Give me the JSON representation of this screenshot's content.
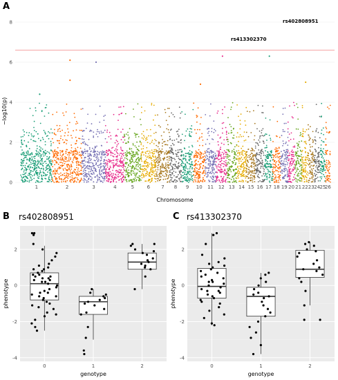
{
  "figure": {
    "panel_letters": [
      "A",
      "B",
      "C"
    ]
  },
  "chart_data": [
    {
      "type": "scatter",
      "subtype": "manhattan",
      "panel": "A",
      "xlabel": "Chromosome",
      "ylabel": "−log10(p)",
      "ylim": [
        0,
        8
      ],
      "yticks": [
        0,
        2,
        4,
        6,
        8
      ],
      "chromosomes": [
        "1",
        "2",
        "3",
        "4",
        "5",
        "6",
        "7",
        "8",
        "9",
        "10",
        "11",
        "12",
        "13",
        "14",
        "15",
        "16",
        "17",
        "18",
        "19",
        "20",
        "21",
        "22",
        "23",
        "24",
        "25",
        "26"
      ],
      "chromosome_colors": [
        "#1b9e77",
        "#ff6a00",
        "#7570b3",
        "#e7298a",
        "#66a61e",
        "#e6ab02",
        "#a6761d",
        "#666666",
        "#1b9e77",
        "#ff6a00",
        "#7570b3",
        "#e7298a",
        "#66a61e",
        "#e6ab02",
        "#a6761d",
        "#666666",
        "#1b9e77",
        "#ff6a00",
        "#7570b3",
        "#e7298a",
        "#66a61e",
        "#e6ab02",
        "#a6761d",
        "#666666",
        "#1b9e77",
        "#ff6a00"
      ],
      "threshold": 6.6,
      "threshold_color": "#f4a0a0",
      "annotations": [
        {
          "label": "rs402808951",
          "value": 7.6
        },
        {
          "label": "rs413302370",
          "value": 6.3
        }
      ],
      "top_hits": [
        {
          "chrom": "2",
          "value": 6.1
        },
        {
          "chrom": "3",
          "value": 6.0
        },
        {
          "chrom": "12",
          "value": 6.3
        },
        {
          "chrom": "17",
          "value": 6.3
        },
        {
          "chrom": "2",
          "value": 5.1
        },
        {
          "chrom": "22",
          "value": 5.0
        },
        {
          "chrom": "10",
          "value": 4.9
        },
        {
          "chrom": "1",
          "value": 4.4
        }
      ],
      "grid": true
    },
    {
      "type": "box",
      "panel": "B",
      "title": "rs402808951",
      "xlabel": "genotype",
      "ylabel": "phenotype",
      "categories": [
        "0",
        "1",
        "2"
      ],
      "ylim": [
        -4.2,
        3.3
      ],
      "yticks": [
        -4,
        -2,
        0,
        2
      ],
      "boxes": [
        {
          "category": "0",
          "q1": -0.8,
          "median": 0.1,
          "q3": 0.7,
          "whisker_low": -2.5,
          "whisker_high": 2.2
        },
        {
          "category": "1",
          "q1": -1.6,
          "median": -0.9,
          "q3": -0.6,
          "whisker_low": -3.0,
          "whisker_high": -0.2
        },
        {
          "category": "2",
          "q1": 0.9,
          "median": 1.3,
          "q3": 1.8,
          "whisker_low": -0.2,
          "whisker_high": 2.3
        }
      ],
      "points": [
        {
          "category": "0",
          "values": [
            2.9,
            2.9,
            2.8,
            2.3,
            2.0,
            1.6,
            1.4,
            1.2,
            1.1,
            1.0,
            0.9,
            0.8,
            0.7,
            0.6,
            0.6,
            0.5,
            0.4,
            0.3,
            0.3,
            0.2,
            0.2,
            0.1,
            0.0,
            -0.1,
            -0.2,
            -0.3,
            -0.4,
            -0.5,
            -0.6,
            -0.7,
            -0.8,
            -0.9,
            -1.0,
            -1.2,
            -1.3,
            -1.5,
            -1.7,
            -1.9,
            -2.1,
            -2.3,
            -2.5,
            0.5,
            -0.4,
            1.8,
            -1.1,
            0.9,
            -0.6,
            0.4,
            -1.6
          ]
        },
        {
          "category": "1",
          "values": [
            -0.2,
            -0.4,
            -0.5,
            -0.6,
            -0.7,
            -0.8,
            -0.9,
            -1.0,
            -1.1,
            -1.3,
            -1.5,
            -1.6,
            -2.3,
            -2.9,
            -3.6,
            -3.8
          ]
        },
        {
          "category": "2",
          "values": [
            2.3,
            2.3,
            2.2,
            2.0,
            1.9,
            1.8,
            1.7,
            1.5,
            1.4,
            1.3,
            1.2,
            1.1,
            1.0,
            0.9,
            0.5,
            -0.2
          ]
        }
      ]
    },
    {
      "type": "box",
      "panel": "C",
      "title": "rs413302370",
      "xlabel": "genotype",
      "ylabel": "phenotype",
      "categories": [
        "0",
        "1",
        "2"
      ],
      "ylim": [
        -4.2,
        3.3
      ],
      "yticks": [
        -4,
        -2,
        0,
        2
      ],
      "boxes": [
        {
          "category": "0",
          "q1": -0.7,
          "median": -0.05,
          "q3": 0.95,
          "whisker_low": -2.2,
          "whisker_high": 2.9
        },
        {
          "category": "1",
          "q1": -1.7,
          "median": -0.6,
          "q3": -0.1,
          "whisker_low": -3.8,
          "whisker_high": 0.7
        },
        {
          "category": "2",
          "q1": 0.45,
          "median": 0.9,
          "q3": 1.95,
          "whisker_low": -1.1,
          "whisker_high": 2.4
        }
      ],
      "points": [
        {
          "category": "0",
          "values": [
            2.9,
            2.8,
            2.3,
            1.7,
            1.5,
            1.3,
            1.2,
            1.1,
            1.0,
            0.9,
            0.8,
            0.7,
            0.6,
            0.5,
            0.4,
            0.3,
            0.2,
            0.1,
            0.0,
            -0.1,
            -0.2,
            -0.3,
            -0.4,
            -0.5,
            -0.6,
            -0.7,
            -0.8,
            -0.9,
            -1.0,
            -1.2,
            -1.4,
            -1.6,
            -1.8,
            -2.1,
            -2.2,
            0.2,
            -0.3
          ]
        },
        {
          "category": "1",
          "values": [
            0.7,
            0.6,
            0.4,
            0.2,
            0.0,
            -0.2,
            -0.4,
            -0.5,
            -0.6,
            -0.7,
            -0.9,
            -1.1,
            -1.3,
            -1.5,
            -1.7,
            -2.0,
            -2.3,
            -2.6,
            -2.9,
            -3.3,
            -3.8
          ]
        },
        {
          "category": "2",
          "values": [
            2.4,
            2.3,
            2.2,
            2.0,
            1.9,
            1.8,
            1.6,
            1.4,
            1.2,
            1.0,
            0.9,
            0.8,
            0.6,
            0.4,
            0.2,
            -0.3,
            -1.1,
            -1.9,
            -1.9
          ]
        }
      ]
    }
  ]
}
